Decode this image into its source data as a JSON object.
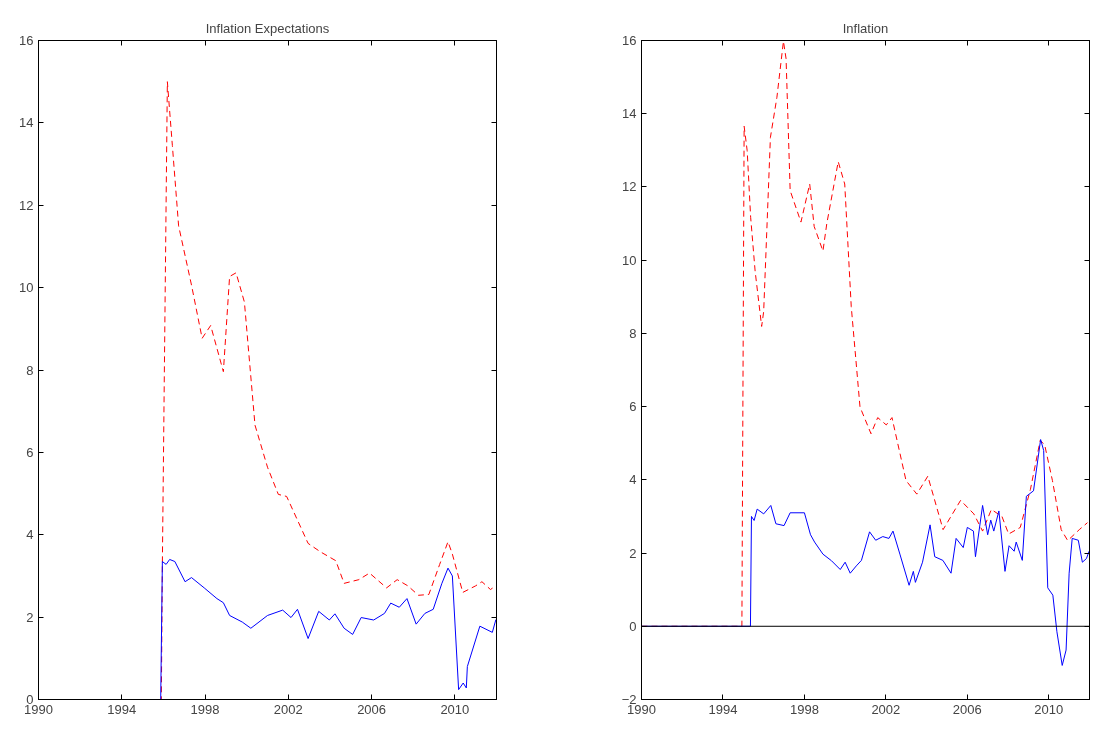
{
  "chart_data": [
    {
      "type": "line",
      "title": "Inflation Expectations",
      "xlim": [
        1990,
        2012
      ],
      "ylim": [
        0,
        16
      ],
      "xticks": [
        1990,
        1994,
        1998,
        2002,
        2006,
        2010
      ],
      "yticks": [
        0,
        2,
        4,
        6,
        8,
        10,
        12,
        14,
        16
      ],
      "grid": false,
      "series": [
        {
          "color": "#ff0000",
          "line_style": "dashed",
          "x": [
            1990,
            1995.9,
            1995.95,
            1996.19,
            1996.43,
            1996.73,
            1997.35,
            1997.86,
            1998.27,
            1998.88,
            1999.18,
            1999.49,
            1999.89,
            2000.4,
            2001.0,
            2001.52,
            2001.92,
            2002.95,
            2003.56,
            2004.28,
            2004.68,
            2005.39,
            2005.9,
            2006.72,
            2007.23,
            2007.74,
            2008.25,
            2008.75,
            2009.27,
            2009.67,
            2009.88,
            2010.38,
            2011.0,
            2011.3,
            2011.71,
            2011.97
          ],
          "values": [
            0,
            0,
            3.3,
            15.0,
            13.45,
            11.5,
            10.06,
            8.77,
            9.08,
            7.96,
            10.27,
            10.36,
            9.65,
            6.66,
            5.64,
            4.98,
            4.93,
            3.79,
            3.58,
            3.37,
            2.82,
            2.91,
            3.07,
            2.71,
            2.91,
            2.76,
            2.53,
            2.55,
            3.28,
            3.83,
            3.53,
            2.6,
            2.76,
            2.86,
            2.67,
            2.76
          ]
        },
        {
          "color": "#0000ff",
          "line_style": "solid",
          "x": [
            1990,
            1995.87,
            1995.95,
            1996.13,
            1996.3,
            1996.55,
            1997.04,
            1997.35,
            1997.96,
            1998.57,
            1998.88,
            1999.18,
            1999.79,
            2000.2,
            2001.0,
            2001.73,
            2002.13,
            2002.44,
            2002.95,
            2003.46,
            2003.97,
            2004.24,
            2004.68,
            2005.09,
            2005.5,
            2006.1,
            2006.62,
            2006.92,
            2007.33,
            2007.7,
            2008.14,
            2008.56,
            2008.96,
            2009.37,
            2009.67,
            2009.88,
            2010.18,
            2010.4,
            2010.55,
            2010.6,
            2011.2,
            2011.8,
            2011.97
          ],
          "values": [
            0,
            0,
            3.35,
            3.28,
            3.4,
            3.35,
            2.86,
            2.96,
            2.71,
            2.45,
            2.35,
            2.04,
            1.88,
            1.73,
            2.04,
            2.17,
            1.99,
            2.19,
            1.48,
            2.14,
            1.93,
            2.08,
            1.73,
            1.58,
            1.99,
            1.93,
            2.09,
            2.34,
            2.24,
            2.45,
            1.83,
            2.09,
            2.19,
            2.81,
            3.19,
            3.0,
            0.24,
            0.4,
            0.28,
            0.8,
            1.78,
            1.63,
            1.94
          ]
        }
      ]
    },
    {
      "type": "line",
      "title": "Inflation",
      "xlim": [
        1990,
        2012
      ],
      "ylim": [
        -2,
        16
      ],
      "xticks": [
        1990,
        1994,
        1998,
        2002,
        2006,
        2010
      ],
      "yticks": [
        -2,
        0,
        2,
        4,
        6,
        8,
        10,
        12,
        14,
        16
      ],
      "grid": false,
      "ref_lines": [
        {
          "axis": "y",
          "value": 0,
          "color": "#000000"
        }
      ],
      "series": [
        {
          "color": "#ff0000",
          "line_style": "dashed",
          "x": [
            1990,
            1994.93,
            1995.04,
            1995.19,
            1995.36,
            1995.58,
            1995.9,
            1996.0,
            1996.33,
            1996.65,
            1996.97,
            1997.1,
            1997.3,
            1997.83,
            1998.26,
            1998.48,
            1998.91,
            1999.1,
            1999.66,
            1999.98,
            2000.3,
            2000.73,
            2001.27,
            2001.6,
            2002.02,
            2002.3,
            2002.99,
            2003.52,
            2004.06,
            2004.81,
            2005.67,
            2006.32,
            2006.75,
            2007.18,
            2007.7,
            2008.03,
            2008.6,
            2009.1,
            2009.58,
            2009.8,
            2010.18,
            2010.61,
            2010.93,
            2011.5,
            2011.9
          ],
          "values": [
            0,
            0,
            13.66,
            12.99,
            11.17,
            9.7,
            8.19,
            8.6,
            13.35,
            14.45,
            15.98,
            15.5,
            11.9,
            11.04,
            12.08,
            10.92,
            10.25,
            11.0,
            12.69,
            12.08,
            8.73,
            5.99,
            5.26,
            5.7,
            5.5,
            5.7,
            3.98,
            3.61,
            4.1,
            2.64,
            3.44,
            3.07,
            2.6,
            3.19,
            3.0,
            2.52,
            2.7,
            3.74,
            5.08,
            4.95,
            3.98,
            2.64,
            2.34,
            2.64,
            2.83
          ]
        },
        {
          "color": "#0000ff",
          "line_style": "solid",
          "x": [
            1990,
            1995.35,
            1995.4,
            1995.53,
            1995.68,
            1996.0,
            1996.35,
            1996.6,
            1997.0,
            1997.3,
            1998.0,
            1998.3,
            1998.5,
            1998.91,
            1999.33,
            1999.76,
            2000.0,
            2000.25,
            2000.55,
            2000.8,
            2001.2,
            2001.5,
            2001.85,
            2002.15,
            2002.35,
            2002.7,
            2003.14,
            2003.35,
            2003.45,
            2003.8,
            2004.17,
            2004.4,
            2004.8,
            2005.2,
            2005.45,
            2005.8,
            2006.0,
            2006.3,
            2006.4,
            2006.75,
            2007.0,
            2007.15,
            2007.3,
            2007.55,
            2007.85,
            2008.05,
            2008.3,
            2008.4,
            2008.7,
            2008.9,
            2009.25,
            2009.6,
            2009.75,
            2009.95,
            2010.2,
            2010.4,
            2010.66,
            2010.85,
            2011.0,
            2011.15,
            2011.45,
            2011.65,
            2011.85,
            2011.98
          ],
          "values": [
            0,
            0,
            3.0,
            2.89,
            3.2,
            3.07,
            3.3,
            2.8,
            2.75,
            3.1,
            3.1,
            2.5,
            2.3,
            1.97,
            1.79,
            1.55,
            1.75,
            1.45,
            1.65,
            1.8,
            2.58,
            2.35,
            2.45,
            2.4,
            2.6,
            1.95,
            1.12,
            1.5,
            1.2,
            1.75,
            2.77,
            1.9,
            1.8,
            1.45,
            2.4,
            2.15,
            2.7,
            2.6,
            1.9,
            3.3,
            2.5,
            2.9,
            2.6,
            3.15,
            1.5,
            2.2,
            2.05,
            2.3,
            1.8,
            3.55,
            3.7,
            5.1,
            4.8,
            1.05,
            0.85,
            -0.15,
            -1.07,
            -0.65,
            1.45,
            2.4,
            2.35,
            1.75,
            1.85,
            2.05
          ]
        }
      ]
    }
  ]
}
